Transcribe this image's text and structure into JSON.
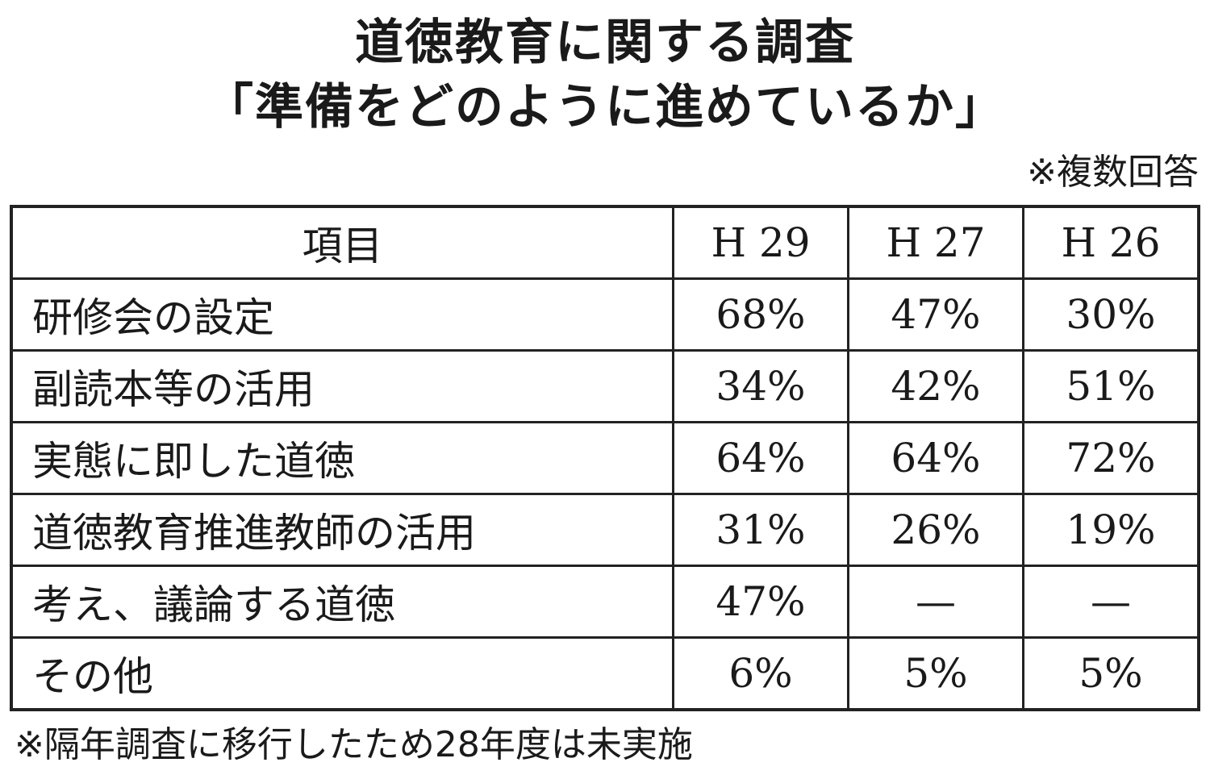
{
  "title_line1": "道徳教育に関する調査",
  "title_line2": "「準備をどのように進めているか」",
  "note": "※複数回答",
  "footnote": "※隔年調査に移行したため28年度は未実施",
  "chart_data": {
    "type": "table",
    "columns": [
      "項目",
      "H 29",
      "H 27",
      "H 26"
    ],
    "rows": [
      {
        "item": "研修会の設定",
        "values": [
          "68%",
          "47%",
          "30%"
        ]
      },
      {
        "item": "副読本等の活用",
        "values": [
          "34%",
          "42%",
          "51%"
        ]
      },
      {
        "item": "実態に即した道徳",
        "values": [
          "64%",
          "64%",
          "72%"
        ]
      },
      {
        "item": "道徳教育推進教師の活用",
        "values": [
          "31%",
          "26%",
          "19%"
        ]
      },
      {
        "item": "考え、議論する道徳",
        "values": [
          "47%",
          "—",
          "—"
        ]
      },
      {
        "item": "その他",
        "values": [
          "6%",
          "5%",
          "5%"
        ]
      }
    ]
  }
}
